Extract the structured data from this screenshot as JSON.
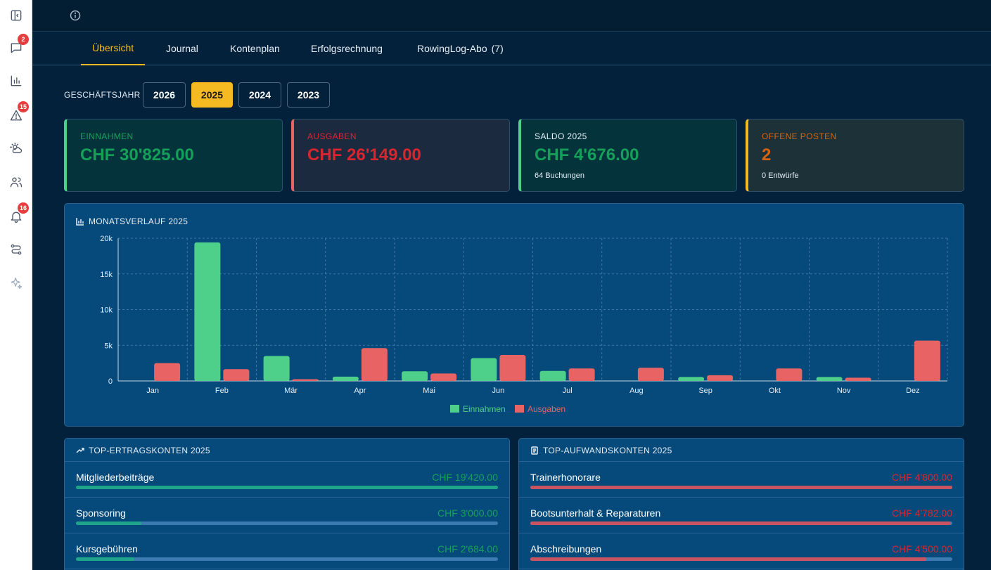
{
  "sidebar": {
    "items": [
      {
        "name": "sidebar-toggle-icon",
        "badge": ""
      },
      {
        "name": "messages-icon",
        "badge": "2"
      },
      {
        "name": "chart-icon",
        "badge": ""
      },
      {
        "name": "alert-icon",
        "badge": "15"
      },
      {
        "name": "weather-icon",
        "badge": ""
      },
      {
        "name": "users-icon",
        "badge": ""
      },
      {
        "name": "notifications-icon",
        "badge": "16"
      },
      {
        "name": "workflow-icon",
        "badge": ""
      },
      {
        "name": "sparkles-icon",
        "badge": ""
      }
    ]
  },
  "tabs": [
    {
      "label": "Übersicht",
      "count": ""
    },
    {
      "label": "Journal",
      "count": ""
    },
    {
      "label": "Kontenplan",
      "count": ""
    },
    {
      "label": "Erfolgsrechnung",
      "count": ""
    },
    {
      "label": "RowingLog-Abo",
      "count": "(7)"
    }
  ],
  "fiscal_year": {
    "label": "GESCHÄFTSJAHR",
    "years": [
      "2026",
      "2025",
      "2024",
      "2023"
    ],
    "selected": "2025"
  },
  "kpis": {
    "income": {
      "label": "EINNAHMEN",
      "value": "CHF 30'825.00",
      "sub": ""
    },
    "expenses": {
      "label": "AUSGABEN",
      "value": "CHF 26'149.00",
      "sub": ""
    },
    "balance": {
      "label": "SALDO 2025",
      "value": "CHF 4'676.00",
      "sub": "64 Buchungen"
    },
    "open": {
      "label": "OFFENE POSTEN",
      "value": "2",
      "sub": "0 Entwürfe"
    }
  },
  "colors": {
    "accent": "#f5b921",
    "income": "#4fd08a",
    "expense": "#e86464",
    "income_text": "#15a05a",
    "expense_text": "#d8262e",
    "open_text": "#d9630e"
  },
  "chart_panel": {
    "title": "MONATSVERLAUF 2025"
  },
  "chart_data": {
    "type": "bar",
    "title": "",
    "xlabel": "",
    "ylabel": "",
    "categories": [
      "Jan",
      "Feb",
      "Mär",
      "Apr",
      "Mai",
      "Jun",
      "Jul",
      "Aug",
      "Sep",
      "Okt",
      "Nov",
      "Dez"
    ],
    "series": [
      {
        "name": "Einnahmen",
        "values": [
          0,
          19420,
          3500,
          600,
          1350,
          3200,
          1400,
          0,
          550,
          0,
          550,
          0
        ]
      },
      {
        "name": "Ausgaben",
        "values": [
          2500,
          1650,
          250,
          4600,
          1050,
          3650,
          1750,
          1850,
          800,
          1750,
          450,
          5650
        ]
      }
    ],
    "ylim": [
      0,
      20000
    ],
    "yticks": [
      0,
      5000,
      10000,
      15000,
      20000
    ],
    "ytick_labels": [
      "0",
      "5k",
      "10k",
      "15k",
      "20k"
    ],
    "grid": true,
    "legend": "bottom-center"
  },
  "top_income": {
    "title": "TOP-ERTRAGSKONTEN 2025",
    "rows": [
      {
        "label": "Mitgliederbeiträge",
        "value": "CHF 19'420.00",
        "share": 1.0
      },
      {
        "label": "Sponsoring",
        "value": "CHF 3'000.00",
        "share": 0.155
      },
      {
        "label": "Kursgebühren",
        "value": "CHF 2'684.00",
        "share": 0.138
      }
    ]
  },
  "top_expense": {
    "title": "TOP-AUFWANDSKONTEN 2025",
    "rows": [
      {
        "label": "Trainerhonorare",
        "value": "CHF 4'800.00",
        "share": 1.0
      },
      {
        "label": "Bootsunterhalt & Reparaturen",
        "value": "CHF 4'782.00",
        "share": 0.996
      },
      {
        "label": "Abschreibungen",
        "value": "CHF 4'500.00",
        "share": 0.9375
      }
    ]
  }
}
